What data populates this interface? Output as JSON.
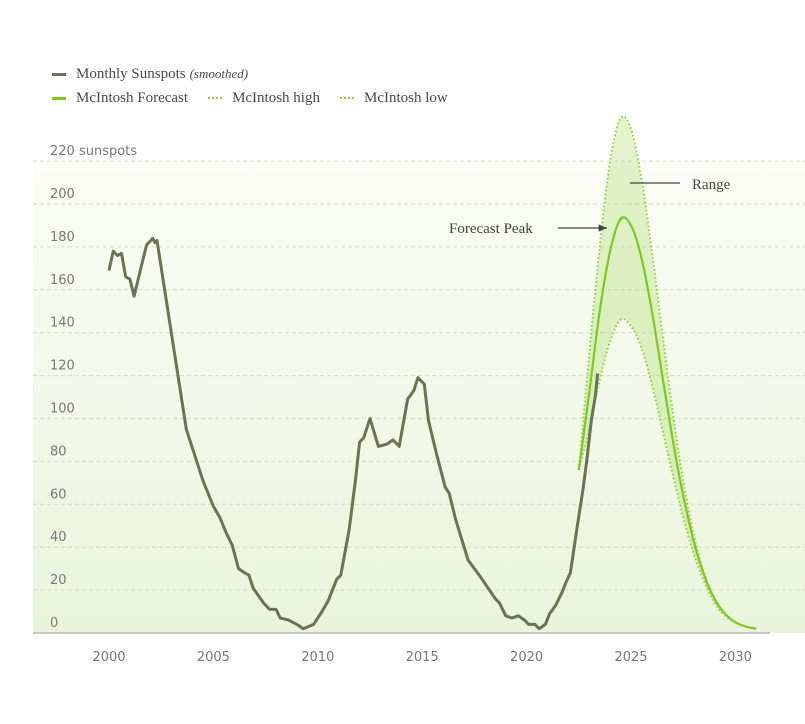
{
  "legend": {
    "sunspots_label": "Monthly Sunspots",
    "sunspots_note": "(smoothed)",
    "forecast_label": "McIntosh Forecast",
    "high_label": "McIntosh high",
    "low_label": "McIntosh low"
  },
  "colors": {
    "sunspots": "#6b7352",
    "forecast": "#7fc820",
    "band": "#8fcf3a"
  },
  "chart_data": {
    "type": "line",
    "title": "",
    "xlabel": "",
    "ylabel": "sunspots",
    "xlim": [
      1996.3,
      2033.4
    ],
    "ylim": [
      0,
      220
    ],
    "grid": true,
    "legend_position": "top-left",
    "x_ticks": [
      "2000",
      "2005",
      "2010",
      "2015",
      "2020",
      "2025",
      "2030"
    ],
    "y_ticks": [
      "0",
      "20",
      "40",
      "60",
      "80",
      "100",
      "120",
      "140",
      "160",
      "180",
      "200",
      "220 sunspots"
    ],
    "annotations": [
      "Forecast Peak",
      "Range"
    ],
    "series": [
      {
        "name": "Monthly Sunspots (smoothed)",
        "style": "solid",
        "points": [
          [
            2000.0,
            169
          ],
          [
            2000.2,
            178
          ],
          [
            2000.4,
            176
          ],
          [
            2000.6,
            177
          ],
          [
            2000.8,
            166
          ],
          [
            2001.0,
            165
          ],
          [
            2001.2,
            157
          ],
          [
            2001.5,
            169
          ],
          [
            2001.8,
            181
          ],
          [
            2002.0,
            183
          ],
          [
            2002.1,
            184
          ],
          [
            2002.2,
            182
          ],
          [
            2002.3,
            183
          ],
          [
            2003.7,
            95
          ],
          [
            2004.5,
            71
          ],
          [
            2005.0,
            59
          ],
          [
            2005.3,
            54
          ],
          [
            2005.6,
            47
          ],
          [
            2005.9,
            41
          ],
          [
            2006.2,
            30
          ],
          [
            2006.5,
            28
          ],
          [
            2006.7,
            27
          ],
          [
            2006.9,
            21
          ],
          [
            2007.4,
            14
          ],
          [
            2007.7,
            11
          ],
          [
            2008.0,
            11
          ],
          [
            2008.2,
            7
          ],
          [
            2008.6,
            6
          ],
          [
            2009.0,
            4
          ],
          [
            2009.3,
            2
          ],
          [
            2009.8,
            4
          ],
          [
            2010.2,
            10
          ],
          [
            2010.5,
            15
          ],
          [
            2010.9,
            25
          ],
          [
            2011.1,
            27
          ],
          [
            2011.5,
            48
          ],
          [
            2011.8,
            71
          ],
          [
            2012.0,
            89
          ],
          [
            2012.2,
            91
          ],
          [
            2012.5,
            100
          ],
          [
            2012.9,
            87
          ],
          [
            2013.3,
            88
          ],
          [
            2013.6,
            90
          ],
          [
            2013.9,
            87
          ],
          [
            2014.3,
            109
          ],
          [
            2014.6,
            113
          ],
          [
            2014.8,
            119
          ],
          [
            2015.1,
            116
          ],
          [
            2015.3,
            99
          ],
          [
            2015.7,
            83
          ],
          [
            2016.1,
            68
          ],
          [
            2016.3,
            65
          ],
          [
            2016.6,
            53
          ],
          [
            2017.2,
            34
          ],
          [
            2017.8,
            26
          ],
          [
            2018.5,
            16
          ],
          [
            2018.7,
            14
          ],
          [
            2019.0,
            8
          ],
          [
            2019.3,
            7
          ],
          [
            2019.6,
            8
          ],
          [
            2019.9,
            6
          ],
          [
            2020.1,
            4
          ],
          [
            2020.4,
            4
          ],
          [
            2020.6,
            2
          ],
          [
            2020.9,
            4
          ],
          [
            2021.1,
            9
          ],
          [
            2021.4,
            13
          ],
          [
            2021.7,
            19
          ],
          [
            2021.9,
            24
          ],
          [
            2022.1,
            28
          ],
          [
            2022.4,
            48
          ],
          [
            2022.7,
            67
          ],
          [
            2022.9,
            82
          ],
          [
            2023.1,
            99
          ],
          [
            2023.3,
            111
          ],
          [
            2023.4,
            121
          ]
        ]
      },
      {
        "name": "McIntosh Forecast",
        "style": "solid",
        "points": [
          [
            2022.5,
            76
          ],
          [
            2023.0,
            112
          ],
          [
            2023.5,
            150
          ],
          [
            2024.0,
            178
          ],
          [
            2024.5,
            193
          ],
          [
            2025.0,
            190
          ],
          [
            2025.5,
            175
          ],
          [
            2026.0,
            150
          ],
          [
            2026.5,
            120
          ],
          [
            2027.0,
            90
          ],
          [
            2027.5,
            64
          ],
          [
            2028.0,
            43
          ],
          [
            2028.5,
            27
          ],
          [
            2029.0,
            16
          ],
          [
            2029.5,
            9
          ],
          [
            2030.0,
            5
          ],
          [
            2030.5,
            3
          ],
          [
            2031.0,
            2
          ]
        ]
      },
      {
        "name": "McIntosh high",
        "style": "dotted",
        "points": [
          [
            2022.5,
            76
          ],
          [
            2023.0,
            130
          ],
          [
            2023.5,
            180
          ],
          [
            2024.0,
            220
          ],
          [
            2024.5,
            240
          ],
          [
            2025.0,
            235
          ],
          [
            2025.5,
            212
          ],
          [
            2026.0,
            178
          ],
          [
            2026.5,
            140
          ],
          [
            2027.0,
            103
          ],
          [
            2027.5,
            71
          ],
          [
            2028.0,
            46
          ],
          [
            2028.5,
            28
          ],
          [
            2029.0,
            16
          ],
          [
            2029.5,
            9
          ],
          [
            2030.0,
            5
          ],
          [
            2030.5,
            3
          ],
          [
            2031.0,
            2
          ]
        ]
      },
      {
        "name": "McIntosh low",
        "style": "dotted",
        "points": [
          [
            2022.5,
            76
          ],
          [
            2023.0,
            95
          ],
          [
            2023.5,
            118
          ],
          [
            2024.0,
            136
          ],
          [
            2024.5,
            146
          ],
          [
            2025.0,
            143
          ],
          [
            2025.5,
            133
          ],
          [
            2026.0,
            116
          ],
          [
            2026.5,
            95
          ],
          [
            2027.0,
            74
          ],
          [
            2027.5,
            54
          ],
          [
            2028.0,
            37
          ],
          [
            2028.5,
            24
          ],
          [
            2029.0,
            14
          ],
          [
            2029.5,
            8
          ],
          [
            2030.0,
            5
          ],
          [
            2030.5,
            3
          ],
          [
            2031.0,
            2
          ]
        ]
      }
    ]
  }
}
